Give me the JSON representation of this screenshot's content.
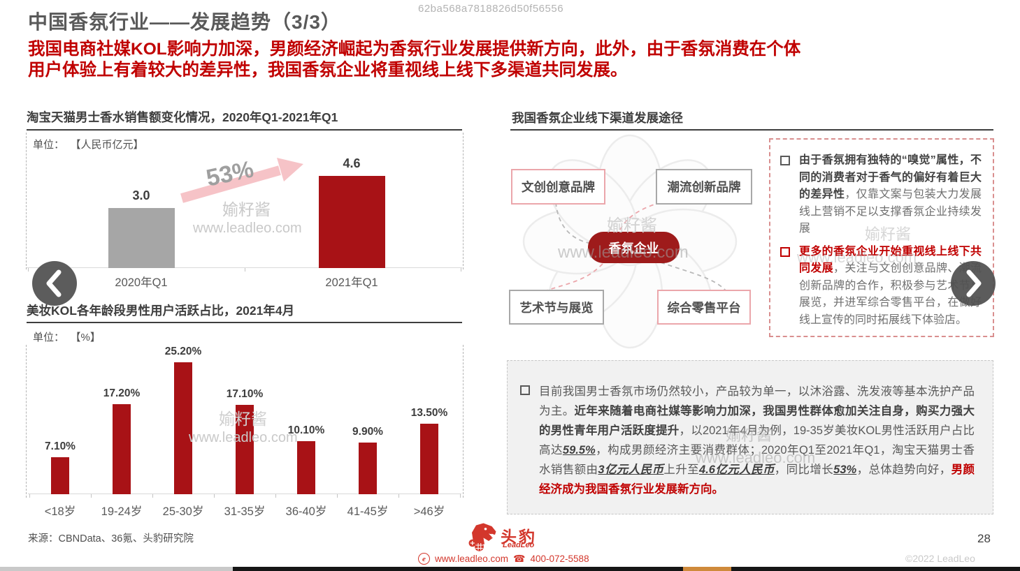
{
  "page": {
    "id_watermark": "62ba568a7818826d50f56556",
    "page_number": "28",
    "copyright": "©2022 LeadLeo"
  },
  "header": {
    "title": "中国香氛行业——发展趋势（3/3）",
    "subtitle_lines": [
      "我国电商社媒KOL影响力加深，男颜经济崛起为香氛行业发展提供新方向，此外，由于香氛消费在个体",
      "用户体验上有着较大的差异性，我国香氛企业将重视线上线下多渠道共同发展。"
    ]
  },
  "watermarks": {
    "brand": "媮籽酱",
    "site": "www.leadleo.com",
    "growth": "53%"
  },
  "chart_data": [
    {
      "type": "bar",
      "name": "mens-perfume-sales",
      "title": "淘宝天猫男士香水销售额变化情况，2020年Q1-2021年Q1",
      "unit_label": "单位：",
      "unit_display": "【人民币亿元】",
      "unit": "人民币亿元",
      "categories": [
        "2020年Q1",
        "2021年Q1"
      ],
      "values": [
        3.0,
        4.6
      ],
      "value_labels": [
        "3.0",
        "4.6"
      ],
      "bar_colors": [
        "#a6a6a6",
        "#a81216"
      ],
      "growth_annotation": "53%",
      "ylim": [
        0,
        5
      ]
    },
    {
      "type": "bar",
      "name": "kol-male-active-users-by-age",
      "title": "美妆KOL各年龄段男性用户活跃占比，2021年4月",
      "unit_label": "单位：",
      "unit_display": "【%】",
      "unit": "%",
      "categories": [
        "<18岁",
        "19-24岁",
        "25-30岁",
        "31-35岁",
        "36-40岁",
        "41-45岁",
        ">46岁"
      ],
      "values": [
        7.1,
        17.2,
        25.2,
        17.1,
        10.1,
        9.9,
        13.5
      ],
      "value_labels": [
        "7.10%",
        "17.20%",
        "25.20%",
        "17.10%",
        "10.10%",
        "9.90%",
        "13.50%"
      ],
      "bar_colors": [
        "#a81216",
        "#a81216",
        "#a81216",
        "#a81216",
        "#a81216",
        "#a81216",
        "#a81216"
      ],
      "ylim": [
        0,
        28
      ]
    }
  ],
  "diagram": {
    "title": "我国香氛企业线下渠道发展途径",
    "center_label": "香氛企业",
    "nodes": [
      {
        "label": "文创创意品牌",
        "accent": "pink"
      },
      {
        "label": "潮流创新品牌",
        "accent": "gray"
      },
      {
        "label": "艺术节与展览",
        "accent": "gray"
      },
      {
        "label": "综合零售平台",
        "accent": "pink"
      }
    ]
  },
  "insight_panel": {
    "bullets": [
      {
        "marker": "gray",
        "segments": [
          {
            "text": "由于香氛拥有独特的“嗅觉”属性，不同的消费者对于香气的偏好有着巨大的差异性",
            "style": "bold"
          },
          {
            "text": "，仅靠文案与包装大力发展线上营销不足以支撑香氛企业持续发展",
            "style": "normal"
          }
        ]
      },
      {
        "marker": "red",
        "segments": [
          {
            "text": "更多的香氛企业开始重视线上线下共同发展",
            "style": "bold-red"
          },
          {
            "text": "，关注与文创创意品牌、潮流创新品牌的合作，积极参与艺术节与展览，并进军综合零售平台，在做好线上宣传的同时拓展线下体验店。",
            "style": "normal"
          }
        ]
      }
    ]
  },
  "summary_panel": {
    "bullets": [
      {
        "marker": "gray",
        "segments": [
          {
            "text": "目前我国男士香氛市场仍然较小，产品较为单一，以沐浴露、洗发液等基本洗护产品为主。",
            "style": "normal"
          },
          {
            "text": "近年来随着电商社媒等影响力加深，我国男性群体愈加关注自身，购买力强大的男性青年用户活跃度提升",
            "style": "bold"
          },
          {
            "text": "，以2021年4月为例，19-35岁美妆KOL男性活跃用户占比高达",
            "style": "normal"
          },
          {
            "text": "59.5%",
            "style": "em"
          },
          {
            "text": "，构成男颜经济主要消费群体；2020年Q1至2021年Q1，淘宝天猫男士香水销售额由",
            "style": "normal"
          },
          {
            "text": "3亿元人民币",
            "style": "em"
          },
          {
            "text": "上升至",
            "style": "normal"
          },
          {
            "text": "4.6亿元人民币",
            "style": "em"
          },
          {
            "text": "，同比增长",
            "style": "normal"
          },
          {
            "text": "53%",
            "style": "em"
          },
          {
            "text": "，总体趋势向好，",
            "style": "normal"
          },
          {
            "text": "男颜经济成为我国香氛行业发展新方向。",
            "style": "bold-red"
          }
        ]
      }
    ]
  },
  "footer": {
    "source": "来源：CBNData、36氪、头豹研究院",
    "logo_cn": "头豹",
    "logo_en": "LeadLeo",
    "website": "www.leadleo.com",
    "phone": "400-072-5588"
  },
  "bottom_bar": {
    "colors": [
      "#c9c9c9",
      "#161616",
      "#cf8a3b",
      "#161616"
    ]
  },
  "colors": {
    "accent_red": "#c00000",
    "bar_red": "#a81216",
    "bar_gray": "#a6a6a6",
    "pill_red": "#9e1b1b"
  }
}
